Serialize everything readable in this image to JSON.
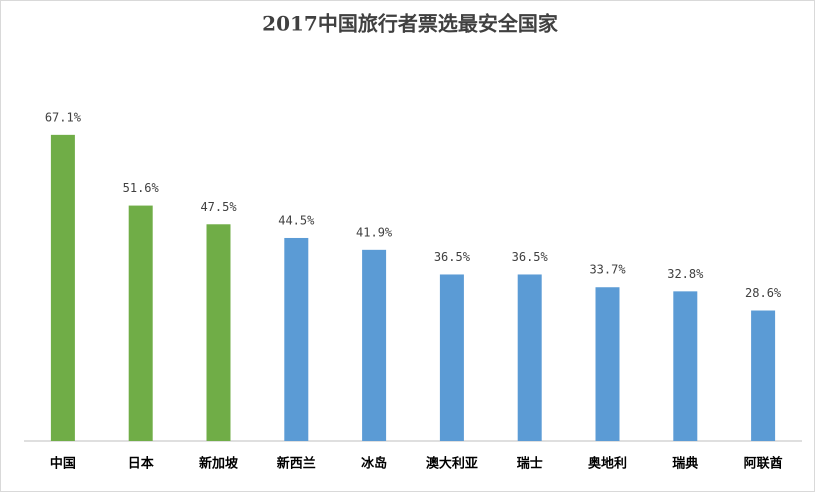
{
  "chart_data": {
    "type": "bar",
    "title": "2017中国旅行者票选最安全国家",
    "categories": [
      "中国",
      "日本",
      "新加坡",
      "新西兰",
      "冰岛",
      "澳大利亚",
      "瑞士",
      "奥地利",
      "瑞典",
      "阿联酋"
    ],
    "values": [
      67.1,
      51.6,
      47.5,
      44.5,
      41.9,
      36.5,
      36.5,
      33.7,
      32.8,
      28.6
    ],
    "value_labels": [
      "67.1%",
      "51.6%",
      "47.5%",
      "44.5%",
      "41.9%",
      "36.5%",
      "36.5%",
      "33.7%",
      "32.8%",
      "28.6%"
    ],
    "colors": [
      "#70ad47",
      "#70ad47",
      "#70ad47",
      "#5b9bd5",
      "#5b9bd5",
      "#5b9bd5",
      "#5b9bd5",
      "#5b9bd5",
      "#5b9bd5",
      "#5b9bd5"
    ],
    "ylim": [
      0,
      80
    ]
  }
}
